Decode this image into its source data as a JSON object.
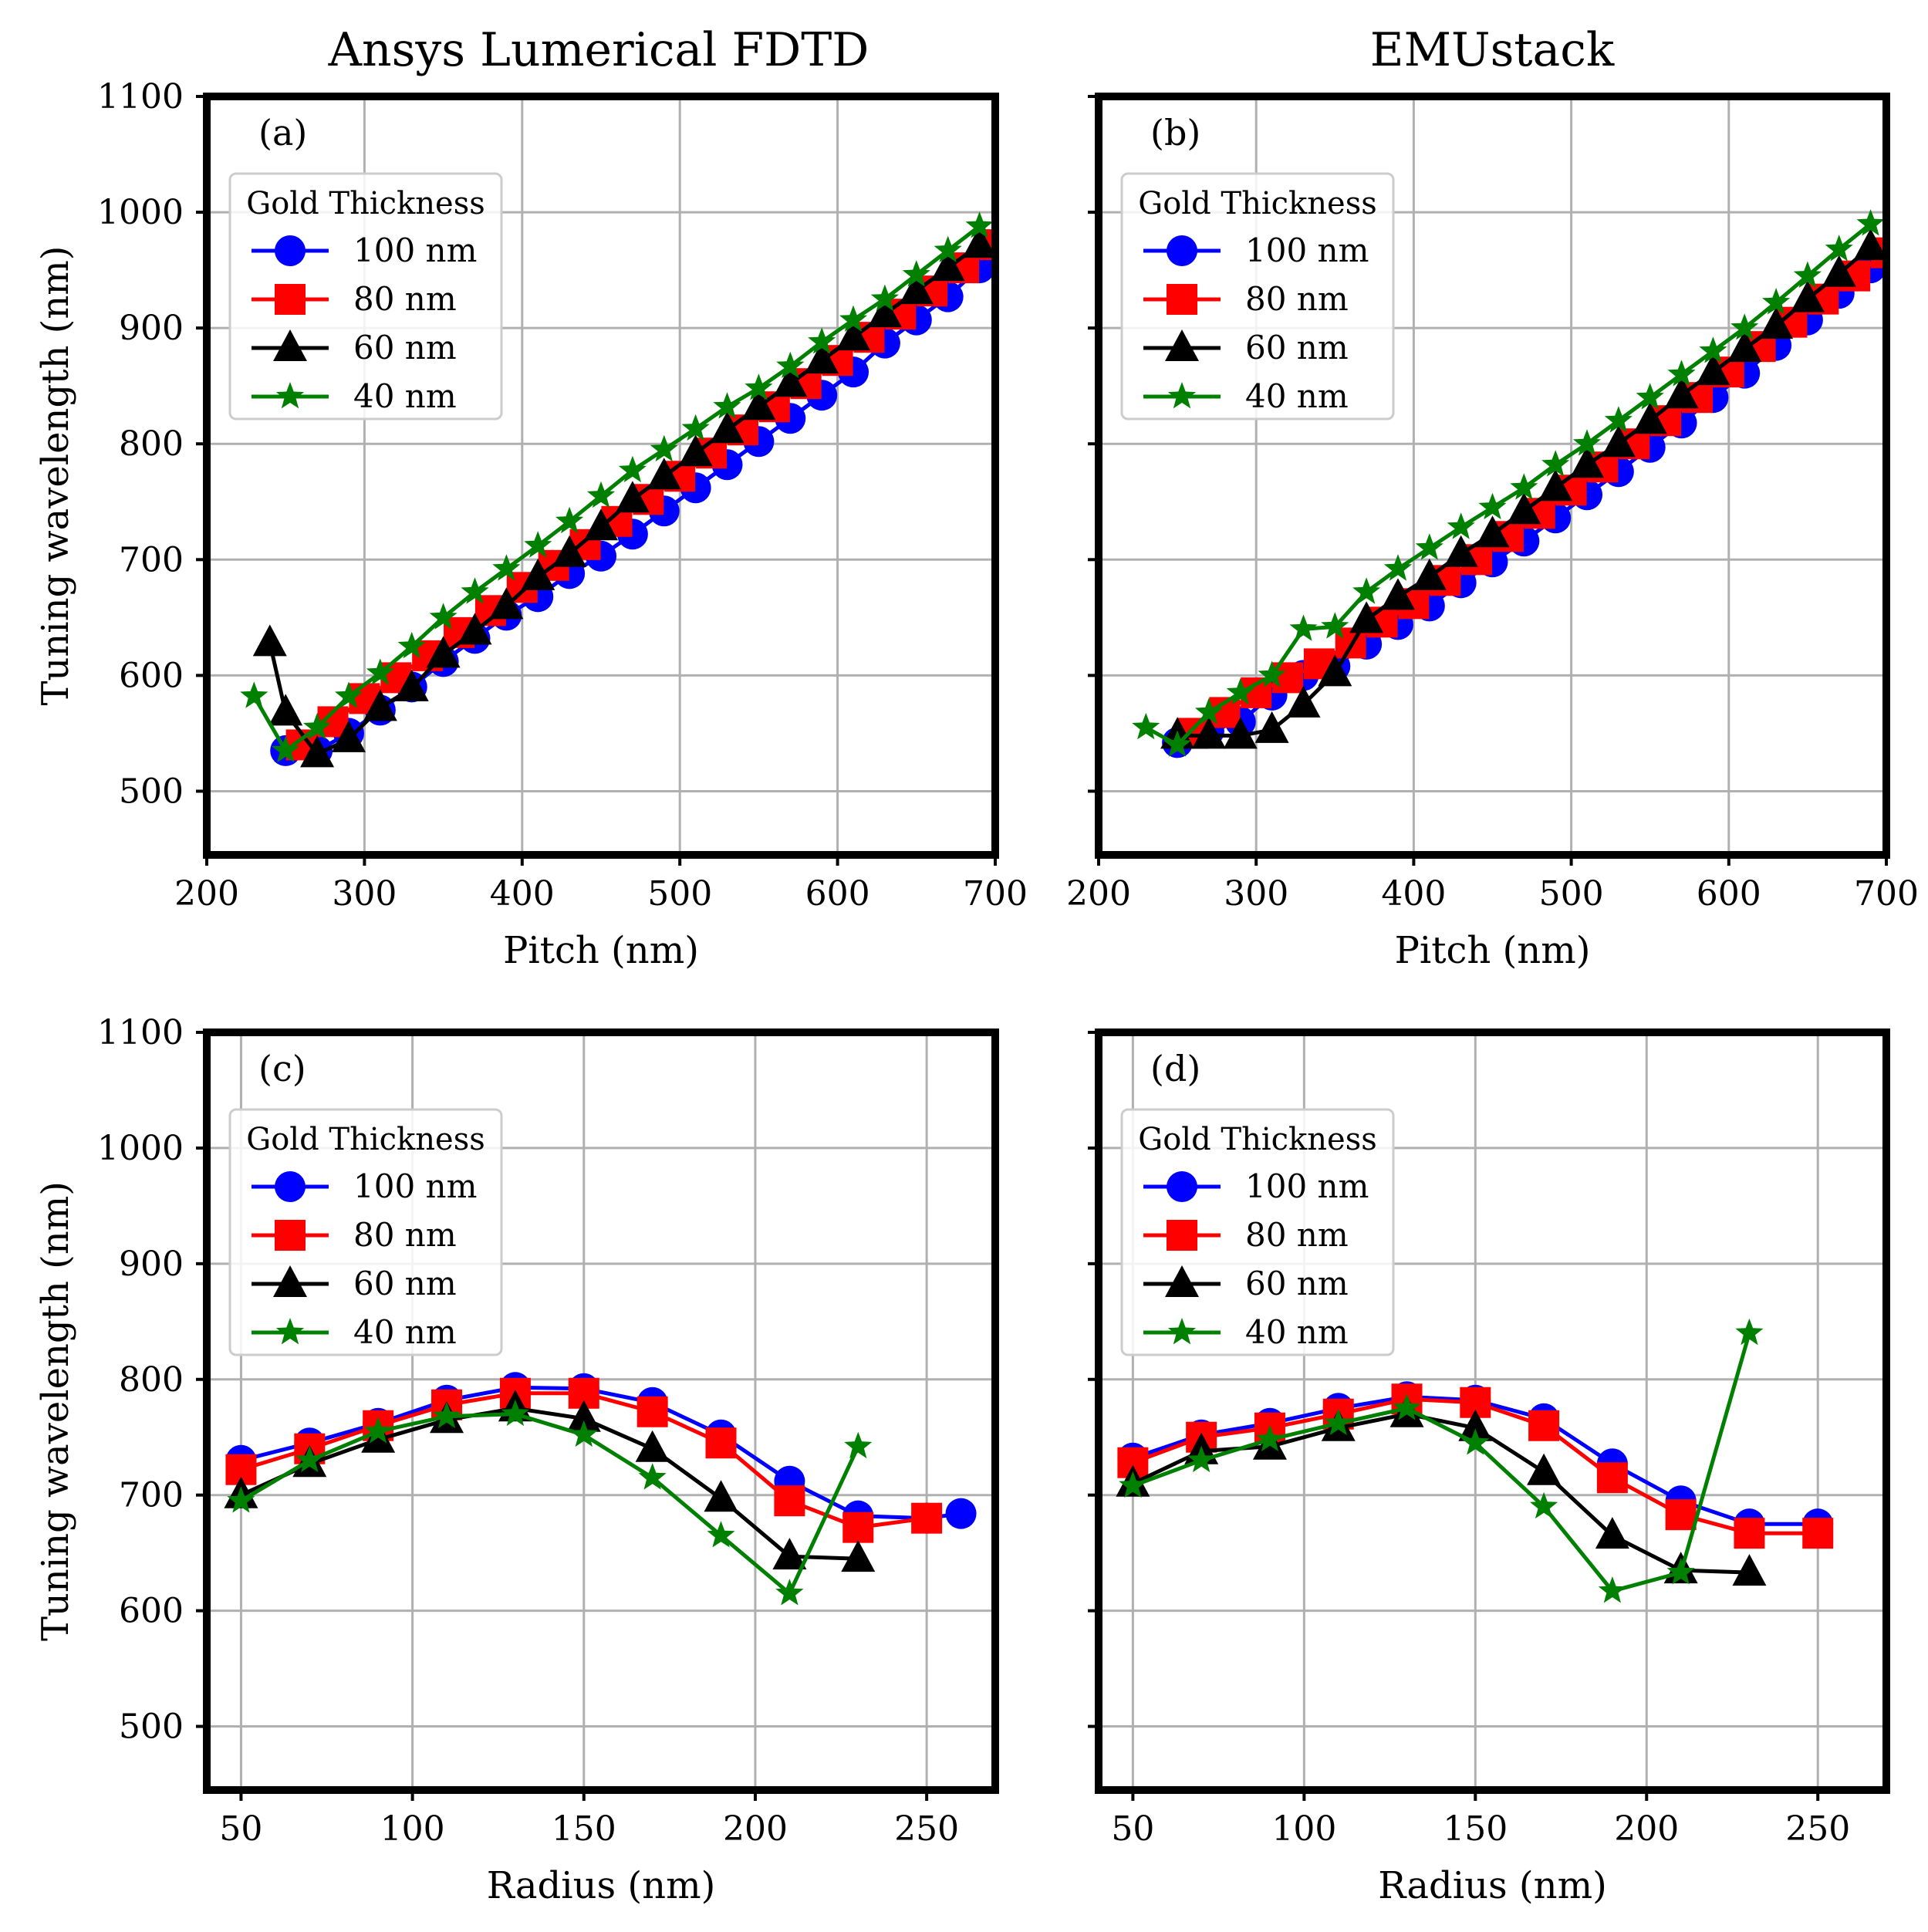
{
  "colors": {
    "100 nm": "#0000ff",
    "80 nm": "#ff0000",
    "60 nm": "#000000",
    "40 nm": "#008000",
    "grid": "#b0b0b0"
  },
  "column_titles": [
    "Ansys Lumerical FDTD",
    "EMUstack"
  ],
  "chart_data": [
    {
      "type": "line",
      "panel_label": "(a)",
      "xlabel": "Pitch (nm)",
      "ylabel": "Tuning wavelength (nm)",
      "xlim": [
        200,
        700
      ],
      "ylim": [
        445,
        1100
      ],
      "xticks": [
        200,
        300,
        400,
        500,
        600,
        700
      ],
      "yticks": [
        500,
        600,
        700,
        800,
        900,
        1000,
        1100
      ],
      "grid": true,
      "legend_title": "Gold Thickness",
      "legend_position": "upper-left",
      "series": [
        {
          "name": "100 nm",
          "marker": "circle",
          "x": [
            250,
            270,
            290,
            310,
            330,
            350,
            370,
            390,
            410,
            430,
            450,
            470,
            490,
            510,
            530,
            550,
            570,
            590,
            610,
            630,
            650,
            670,
            690
          ],
          "y": [
            535,
            535,
            550,
            570,
            590,
            612,
            632,
            652,
            668,
            688,
            703,
            722,
            742,
            762,
            782,
            802,
            822,
            842,
            862,
            887,
            907,
            927,
            952
          ]
        },
        {
          "name": "80 nm",
          "marker": "square",
          "x": [
            260,
            280,
            300,
            320,
            340,
            360,
            380,
            400,
            420,
            440,
            460,
            480,
            500,
            520,
            540,
            560,
            580,
            600,
            620,
            640,
            660,
            680,
            700
          ],
          "y": [
            540,
            560,
            580,
            598,
            617,
            637,
            656,
            676,
            695,
            713,
            733,
            752,
            772,
            792,
            812,
            832,
            852,
            872,
            892,
            912,
            932,
            952,
            972
          ]
        },
        {
          "name": "60 nm",
          "marker": "triangle",
          "x": [
            240,
            250,
            270,
            290,
            310,
            330,
            350,
            370,
            390,
            410,
            430,
            450,
            470,
            490,
            510,
            530,
            550,
            570,
            590,
            610,
            630,
            650,
            670,
            690
          ],
          "y": [
            628,
            568,
            532,
            545,
            572,
            589,
            618,
            638,
            660,
            685,
            705,
            728,
            752,
            772,
            792,
            812,
            832,
            852,
            872,
            892,
            912,
            932,
            952,
            972
          ]
        },
        {
          "name": "40 nm",
          "marker": "star",
          "x": [
            230,
            250,
            270,
            290,
            310,
            330,
            350,
            370,
            390,
            410,
            430,
            450,
            470,
            490,
            510,
            530,
            550,
            570,
            590,
            610,
            630,
            650,
            670,
            690
          ],
          "y": [
            582,
            535,
            555,
            582,
            602,
            625,
            650,
            672,
            692,
            712,
            733,
            755,
            777,
            795,
            813,
            832,
            848,
            867,
            888,
            907,
            925,
            946,
            967,
            988
          ]
        }
      ]
    },
    {
      "type": "line",
      "panel_label": "(b)",
      "xlabel": "Pitch (nm)",
      "ylabel": "",
      "xlim": [
        200,
        700
      ],
      "ylim": [
        445,
        1100
      ],
      "xticks": [
        200,
        300,
        400,
        500,
        600,
        700
      ],
      "yticks": [
        500,
        600,
        700,
        800,
        900,
        1000,
        1100
      ],
      "grid": true,
      "legend_title": "Gold Thickness",
      "legend_position": "upper-left",
      "series": [
        {
          "name": "100 nm",
          "marker": "circle",
          "x": [
            250,
            270,
            290,
            310,
            330,
            350,
            370,
            390,
            410,
            430,
            450,
            470,
            490,
            510,
            530,
            550,
            570,
            590,
            610,
            630,
            650,
            670,
            690
          ],
          "y": [
            542,
            552,
            560,
            583,
            600,
            608,
            627,
            644,
            660,
            680,
            698,
            716,
            736,
            756,
            776,
            797,
            818,
            840,
            861,
            885,
            907,
            930,
            952
          ]
        },
        {
          "name": "80 nm",
          "marker": "square",
          "x": [
            260,
            280,
            300,
            320,
            340,
            360,
            380,
            400,
            420,
            440,
            460,
            480,
            500,
            520,
            540,
            560,
            580,
            600,
            620,
            640,
            660,
            680,
            700
          ],
          "y": [
            550,
            568,
            585,
            598,
            610,
            628,
            646,
            662,
            682,
            700,
            720,
            740,
            760,
            780,
            800,
            820,
            840,
            862,
            884,
            905,
            925,
            945,
            965
          ]
        },
        {
          "name": "60 nm",
          "marker": "triangle",
          "x": [
            250,
            270,
            290,
            310,
            330,
            350,
            370,
            390,
            410,
            430,
            450,
            470,
            490,
            510,
            530,
            550,
            570,
            590,
            610,
            630,
            650,
            670,
            690
          ],
          "y": [
            548,
            548,
            548,
            553,
            575,
            602,
            648,
            668,
            685,
            705,
            722,
            742,
            762,
            782,
            800,
            820,
            842,
            862,
            882,
            902,
            925,
            947,
            970
          ]
        },
        {
          "name": "40 nm",
          "marker": "star",
          "x": [
            230,
            250,
            270,
            290,
            310,
            330,
            350,
            370,
            390,
            410,
            430,
            450,
            470,
            490,
            510,
            530,
            550,
            570,
            590,
            610,
            630,
            650,
            670,
            690
          ],
          "y": [
            555,
            540,
            568,
            585,
            600,
            640,
            642,
            672,
            692,
            710,
            728,
            745,
            762,
            782,
            800,
            820,
            840,
            860,
            880,
            900,
            922,
            945,
            968,
            990
          ]
        }
      ]
    },
    {
      "type": "line",
      "panel_label": "(c)",
      "xlabel": "Radius (nm)",
      "ylabel": "Tuning wavelength (nm)",
      "xlim": [
        40,
        270
      ],
      "ylim": [
        445,
        1100
      ],
      "xticks": [
        50,
        100,
        150,
        200,
        250
      ],
      "yticks": [
        500,
        600,
        700,
        800,
        900,
        1000,
        1100
      ],
      "grid": true,
      "legend_title": "Gold Thickness",
      "legend_position": "upper-left",
      "series": [
        {
          "name": "100 nm",
          "marker": "circle",
          "x": [
            50,
            70,
            90,
            110,
            130,
            150,
            170,
            190,
            210,
            230,
            250,
            260
          ],
          "y": [
            730,
            745,
            762,
            782,
            793,
            792,
            780,
            752,
            712,
            682,
            680,
            684
          ]
        },
        {
          "name": "80 nm",
          "marker": "square",
          "x": [
            50,
            70,
            90,
            110,
            130,
            150,
            170,
            190,
            210,
            230,
            250
          ],
          "y": [
            722,
            740,
            760,
            778,
            788,
            788,
            772,
            745,
            695,
            672,
            680
          ]
        },
        {
          "name": "60 nm",
          "marker": "triangle",
          "x": [
            50,
            70,
            90,
            110,
            130,
            150,
            170,
            190,
            210,
            230
          ],
          "y": [
            700,
            727,
            748,
            765,
            775,
            766,
            740,
            697,
            647,
            645
          ]
        },
        {
          "name": "40 nm",
          "marker": "star",
          "x": [
            50,
            70,
            90,
            110,
            130,
            150,
            170,
            190,
            210,
            230
          ],
          "y": [
            695,
            730,
            755,
            768,
            770,
            752,
            715,
            665,
            615,
            742
          ]
        }
      ]
    },
    {
      "type": "line",
      "panel_label": "(d)",
      "xlabel": "Radius (nm)",
      "ylabel": "",
      "xlim": [
        40,
        270
      ],
      "ylim": [
        445,
        1100
      ],
      "xticks": [
        50,
        100,
        150,
        200,
        250
      ],
      "yticks": [
        500,
        600,
        700,
        800,
        900,
        1000,
        1100
      ],
      "grid": true,
      "legend_title": "Gold Thickness",
      "legend_position": "upper-left",
      "series": [
        {
          "name": "100 nm",
          "marker": "circle",
          "x": [
            50,
            70,
            90,
            110,
            130,
            150,
            170,
            190,
            210,
            230,
            250
          ],
          "y": [
            732,
            752,
            762,
            775,
            785,
            782,
            766,
            727,
            695,
            675,
            675
          ]
        },
        {
          "name": "80 nm",
          "marker": "square",
          "x": [
            50,
            70,
            90,
            110,
            130,
            150,
            170,
            190,
            210,
            230,
            250
          ],
          "y": [
            728,
            750,
            758,
            770,
            783,
            780,
            760,
            715,
            683,
            667,
            667
          ]
        },
        {
          "name": "60 nm",
          "marker": "triangle",
          "x": [
            50,
            70,
            90,
            110,
            130,
            150,
            170,
            190,
            210,
            230
          ],
          "y": [
            710,
            738,
            742,
            758,
            770,
            758,
            720,
            665,
            635,
            633
          ]
        },
        {
          "name": "40 nm",
          "marker": "star",
          "x": [
            50,
            70,
            90,
            110,
            130,
            150,
            170,
            190,
            210,
            230
          ],
          "y": [
            708,
            730,
            748,
            762,
            775,
            745,
            690,
            617,
            633,
            840
          ]
        }
      ]
    }
  ]
}
